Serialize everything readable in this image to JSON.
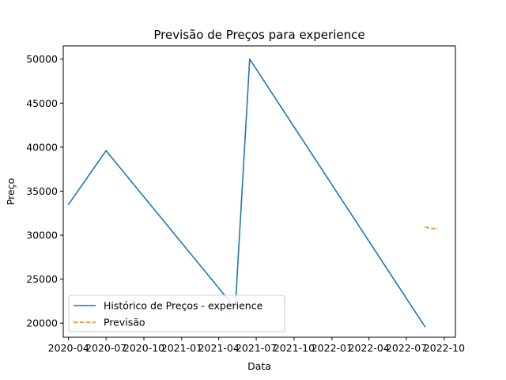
{
  "chart_data": {
    "type": "line",
    "title": "Previsão de Preços para experience",
    "xlabel": "Data",
    "ylabel": "Preço",
    "x_axis": "date",
    "x_ticks": [
      "2020-04",
      "2020-07",
      "2020-10",
      "2021-01",
      "2021-04",
      "2021-07",
      "2021-10",
      "2022-01",
      "2022-04",
      "2022-07",
      "2022-10"
    ],
    "y_ticks": [
      20000,
      25000,
      30000,
      35000,
      40000,
      45000,
      50000
    ],
    "xlim": [
      "2020-03-19",
      "2022-10-28"
    ],
    "ylim": [
      18400,
      51500
    ],
    "grid": false,
    "legend_position": "lower left",
    "series": [
      {
        "name": "Histórico de Preços - experience",
        "color": "#1f77b4",
        "style": "solid",
        "points": [
          {
            "x": "2020-04-01",
            "y": 33500
          },
          {
            "x": "2020-07-01",
            "y": 39600
          },
          {
            "x": "2021-05-11",
            "y": 21700
          },
          {
            "x": "2021-06-15",
            "y": 50000
          },
          {
            "x": "2022-08-15",
            "y": 19600
          }
        ]
      },
      {
        "name": "Previsão",
        "color": "#ff7f0e",
        "style": "dashed",
        "points": [
          {
            "x": "2022-08-15",
            "y": 30900
          },
          {
            "x": "2022-09-15",
            "y": 30700
          }
        ]
      }
    ]
  }
}
